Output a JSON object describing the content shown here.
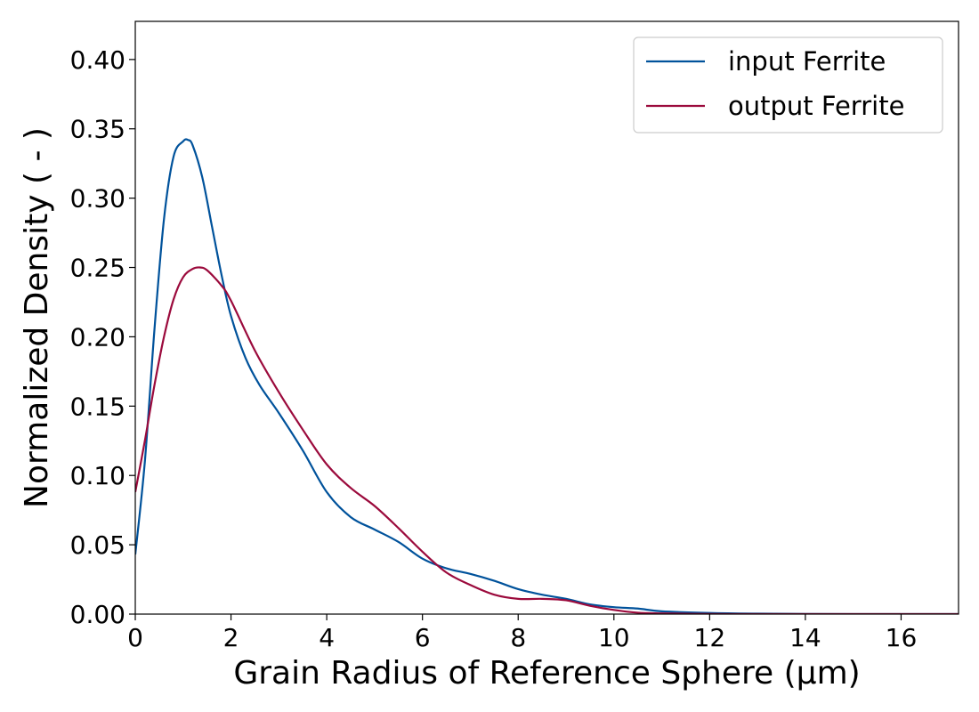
{
  "chart_data": {
    "type": "line",
    "xlabel": "Grain Radius of Reference Sphere (µm)",
    "ylabel": "Normalized Density ( - )",
    "xlim": [
      0,
      17.2
    ],
    "ylim": [
      0,
      0.4275
    ],
    "x_ticks": [
      0,
      2,
      4,
      6,
      8,
      10,
      12,
      14,
      16
    ],
    "x_tick_labels": [
      "0",
      "2",
      "4",
      "6",
      "8",
      "10",
      "12",
      "14",
      "16"
    ],
    "y_ticks": [
      0,
      0.05,
      0.1,
      0.15,
      0.2,
      0.25,
      0.3,
      0.35,
      0.4
    ],
    "y_tick_labels": [
      "0.00",
      "0.05",
      "0.10",
      "0.15",
      "0.20",
      "0.25",
      "0.30",
      "0.35",
      "0.40"
    ],
    "grid": false,
    "legend_position": "top-right",
    "series": [
      {
        "name": "input Ferrite",
        "color": "#00529b",
        "x": [
          0,
          0.2,
          0.4,
          0.6,
          0.8,
          1.0,
          1.1,
          1.2,
          1.4,
          1.6,
          1.8,
          2.0,
          2.3,
          2.6,
          3.0,
          3.5,
          4.0,
          4.5,
          5.0,
          5.5,
          6.0,
          6.5,
          7.0,
          7.5,
          8.0,
          8.5,
          9.0,
          9.5,
          10.0,
          10.5,
          11.0,
          12.0,
          13.0,
          14.0,
          15.0,
          16.0,
          17.2
        ],
        "y": [
          0.043,
          0.11,
          0.205,
          0.285,
          0.33,
          0.341,
          0.342,
          0.338,
          0.315,
          0.28,
          0.245,
          0.215,
          0.185,
          0.165,
          0.145,
          0.118,
          0.088,
          0.07,
          0.061,
          0.052,
          0.04,
          0.033,
          0.029,
          0.024,
          0.018,
          0.014,
          0.011,
          0.007,
          0.005,
          0.004,
          0.002,
          0.0008,
          0.0003,
          0.0001,
          0.0,
          0.0,
          0.0
        ]
      },
      {
        "name": "output Ferrite",
        "color": "#9b0a3c",
        "x": [
          0,
          0.2,
          0.4,
          0.6,
          0.8,
          1.0,
          1.2,
          1.35,
          1.5,
          1.8,
          2.0,
          2.5,
          3.0,
          3.5,
          4.0,
          4.5,
          5.0,
          5.5,
          6.0,
          6.5,
          7.0,
          7.5,
          8.0,
          8.5,
          9.0,
          9.5,
          10.0,
          10.5,
          11.0,
          12.0,
          13.0,
          14.0,
          15.0,
          16.0,
          17.2
        ],
        "y": [
          0.088,
          0.125,
          0.165,
          0.2,
          0.227,
          0.243,
          0.249,
          0.25,
          0.248,
          0.237,
          0.226,
          0.19,
          0.16,
          0.133,
          0.108,
          0.091,
          0.078,
          0.062,
          0.045,
          0.03,
          0.021,
          0.014,
          0.011,
          0.011,
          0.01,
          0.006,
          0.003,
          0.001,
          0.0005,
          0.0001,
          0.0,
          0.0,
          0.0,
          0.0,
          0.0
        ]
      }
    ]
  }
}
